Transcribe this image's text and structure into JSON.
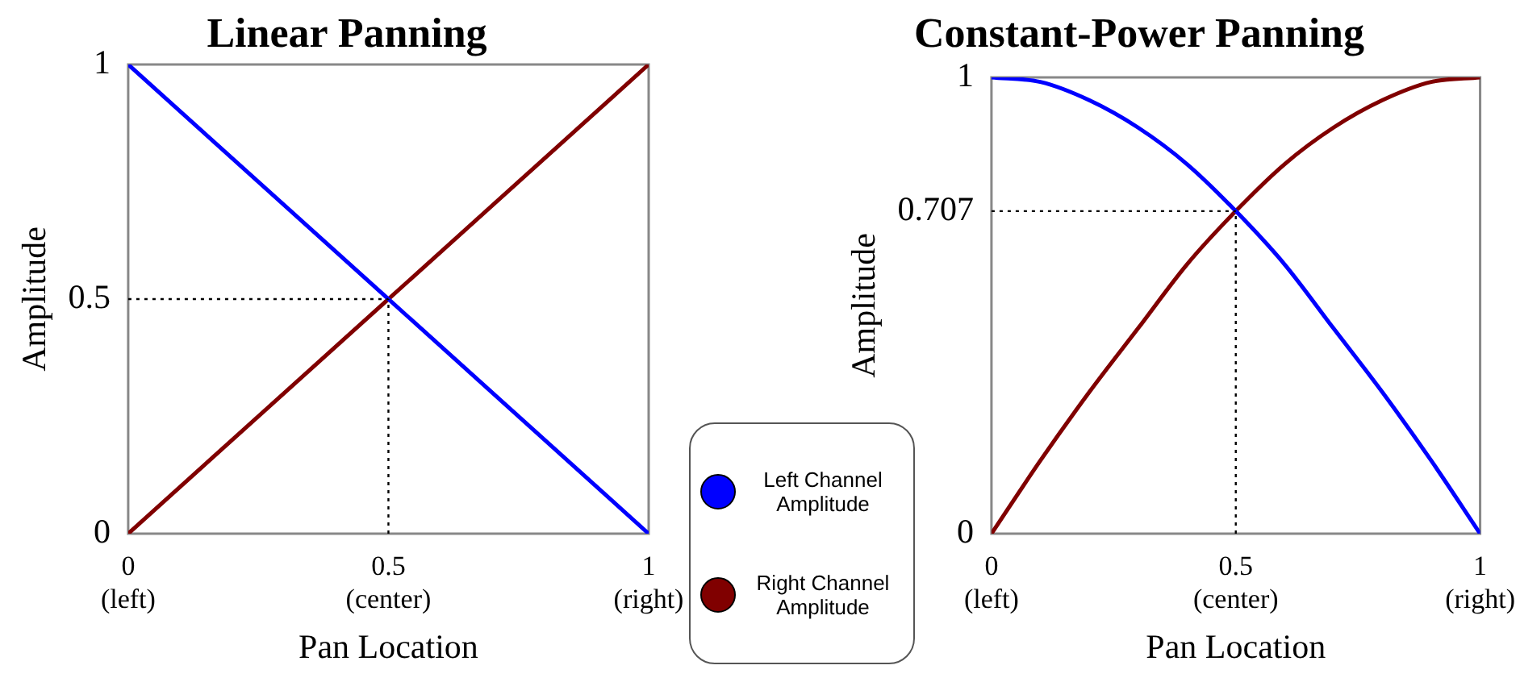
{
  "chart_data": [
    {
      "type": "line",
      "title": "Linear Panning",
      "xlabel": "Pan Location",
      "ylabel": "Amplitude",
      "x": [
        0,
        1
      ],
      "series": [
        {
          "name": "Left Channel Amplitude",
          "color": "#0000ff",
          "values": [
            1,
            0
          ]
        },
        {
          "name": "Right Channel Amplitude",
          "color": "#800000",
          "values": [
            0,
            1
          ]
        }
      ],
      "xlim": [
        0,
        1
      ],
      "xticks": [
        {
          "value": 0,
          "label": "0\n(left)"
        },
        {
          "value": 0.5,
          "label": "0.5\n(center)"
        },
        {
          "value": 1,
          "label": "1\n(right)"
        }
      ],
      "ylim": [
        0,
        1
      ],
      "yticks": [
        0,
        0.5,
        1
      ],
      "ref_lines": [
        {
          "axis": "y",
          "value": 0.5,
          "line_style": "dotted",
          "color": "#000000"
        },
        {
          "axis": "x",
          "value": 0.5,
          "line_style": "dotted",
          "color": "#000000"
        }
      ],
      "grid": false,
      "legend": "bottom right",
      "marker": "none",
      "line_style": "solid"
    },
    {
      "type": "line",
      "title": "Constant-Power Panning",
      "xlabel": "Pan Location",
      "ylabel": "Amplitude",
      "x": [
        0,
        0.1,
        0.2,
        0.3,
        0.4,
        0.5,
        0.6,
        0.7,
        0.8,
        0.9,
        1
      ],
      "series": [
        {
          "color": "#0000ff",
          "values": [
            1,
            0.99,
            0.95,
            0.89,
            0.81,
            0.707,
            0.59,
            0.45,
            0.31,
            0.16,
            0
          ]
        },
        {
          "color": "#800000",
          "values": [
            0,
            0.16,
            0.31,
            0.45,
            0.59,
            0.707,
            0.81,
            0.89,
            0.95,
            0.99,
            1
          ]
        }
      ],
      "xlim": [
        0,
        1
      ],
      "xticks": [
        {
          "value": 0,
          "label": "0\n(left)"
        },
        {
          "value": 0.5,
          "label": "0.5\n(center)"
        },
        {
          "value": 1,
          "label": "1\n(right)"
        }
      ],
      "ylim": [
        0,
        1
      ],
      "yticks": [
        0,
        0.707,
        1
      ],
      "ref_lines": [
        {
          "axis": "y",
          "value": 0.707,
          "line_style": "dotted",
          "color": "#000000"
        },
        {
          "axis": "x",
          "value": 0.5,
          "line_style": "dotted",
          "color": "#000000"
        }
      ],
      "grid": false,
      "marker": "none",
      "line_style": "solid"
    }
  ]
}
